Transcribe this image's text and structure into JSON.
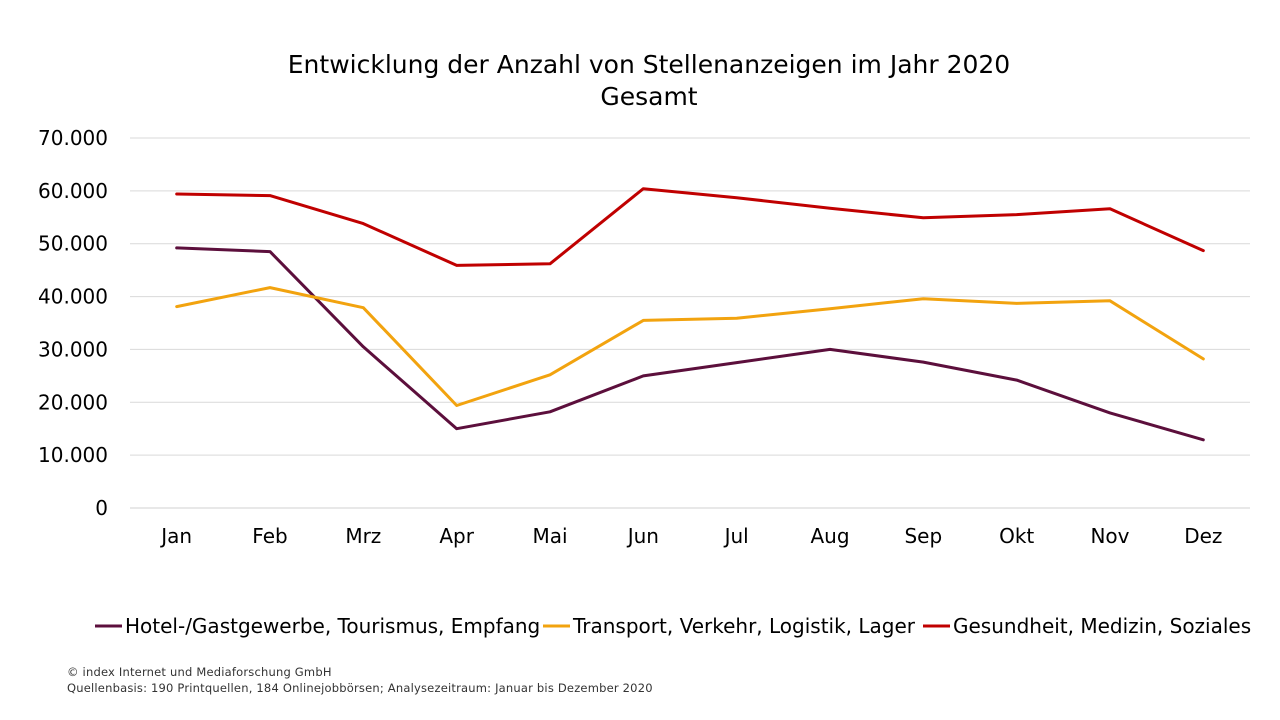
{
  "chart_data": {
    "type": "line",
    "title": "Entwicklung der Anzahl von Stellenanzeigen im Jahr 2020",
    "subtitle": "Gesamt",
    "categories": [
      "Jan",
      "Feb",
      "Mrz",
      "Apr",
      "Mai",
      "Jun",
      "Jul",
      "Aug",
      "Sep",
      "Okt",
      "Nov",
      "Dez"
    ],
    "y_ticks": [
      "0",
      "10.000",
      "20.000",
      "30.000",
      "40.000",
      "50.000",
      "60.000",
      "70.000"
    ],
    "ylim": [
      0,
      70000
    ],
    "grid": true,
    "legend_position": "bottom",
    "series": [
      {
        "name": "Hotel-/Gastgewerbe, Tourismus, Empfang",
        "color": "#5c0f3c",
        "values": [
          49200,
          48500,
          30500,
          15000,
          18200,
          25000,
          27500,
          30000,
          27600,
          24200,
          18000,
          12900
        ]
      },
      {
        "name": "Transport, Verkehr, Logistik, Lager",
        "color": "#f2a30f",
        "values": [
          38100,
          41700,
          37900,
          19400,
          25200,
          35500,
          35900,
          37700,
          39600,
          38700,
          39200,
          28200
        ]
      },
      {
        "name": "Gesundheit, Medizin, Soziales",
        "color": "#c00000",
        "values": [
          59400,
          59100,
          53800,
          45900,
          46200,
          60400,
          58700,
          56700,
          54900,
          55500,
          56600,
          48700
        ]
      }
    ]
  },
  "footer": {
    "copyright": "© index Internet und Mediaforschung GmbH",
    "source": "Quellenbasis: 190 Printquellen, 184 Onlinejobbörsen; Analysezeitraum: Januar bis Dezember 2020"
  }
}
